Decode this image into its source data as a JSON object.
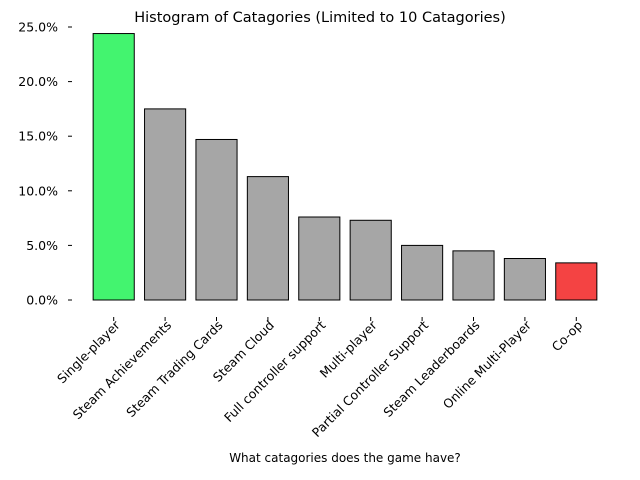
{
  "chart_data": {
    "type": "bar",
    "title": "Histogram of Catagories (Limited to 10 Catagories)",
    "xlabel": "What catagories does the game have?",
    "ylabel": "",
    "categories": [
      "Single-player",
      "Steam Achievements",
      "Steam Trading Cards",
      "Steam Cloud",
      "Full controller support",
      "Multi-player",
      "Partial Controller Support",
      "Steam Leaderboards",
      "Online Multi-Player",
      "Co-op"
    ],
    "values": [
      24.4,
      17.5,
      14.7,
      11.3,
      7.6,
      7.3,
      5.0,
      4.5,
      3.8,
      3.4
    ],
    "ylim": [
      0,
      25
    ],
    "yticks": [
      0,
      5,
      10,
      15,
      20,
      25
    ],
    "ytick_labels": [
      "0.0%",
      "5.0%",
      "10.0%",
      "15.0%",
      "20.0%",
      "25.0%"
    ],
    "grid": false,
    "legend": "none",
    "colors": {
      "highest": "#43f46f",
      "lowest": "#f44343",
      "default": "#a6a6a6",
      "edge": "#000000"
    }
  }
}
